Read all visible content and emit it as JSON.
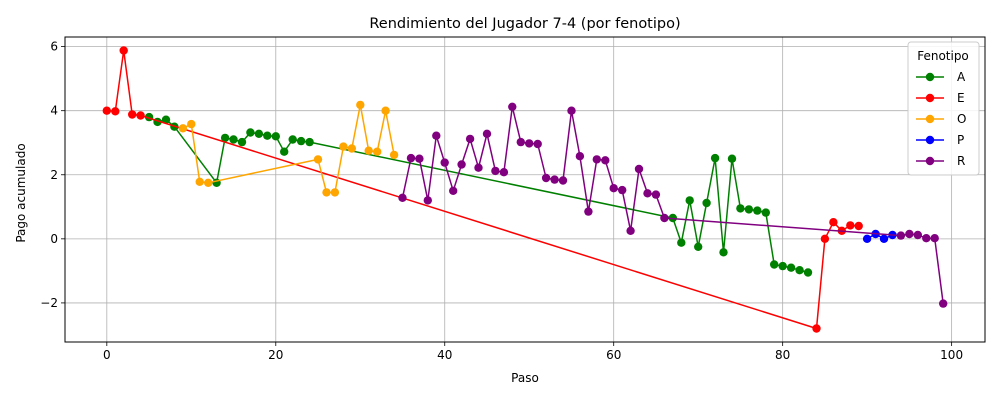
{
  "chart_data": {
    "type": "line",
    "title": "Rendimiento del Jugador 7-4 (por fenotipo)",
    "xlabel": "Paso",
    "ylabel": "Pago acumulado",
    "xlim": [
      -4.95,
      103.95
    ],
    "ylim": [
      -3.22,
      6.3
    ],
    "xticks": [
      0,
      20,
      40,
      60,
      80,
      100
    ],
    "yticks": [
      -2,
      0,
      2,
      4,
      6
    ],
    "grid": true,
    "legend": {
      "title": "Fenotipo",
      "placement": "top-right"
    },
    "series": [
      {
        "name": "A",
        "color": "#008000",
        "points": [
          [
            5,
            3.8
          ],
          [
            6,
            3.65
          ],
          [
            7,
            3.72
          ],
          [
            8,
            3.5
          ],
          [
            13,
            1.75
          ],
          [
            14,
            3.15
          ],
          [
            15,
            3.1
          ],
          [
            16,
            3.02
          ],
          [
            17,
            3.32
          ],
          [
            18,
            3.28
          ],
          [
            19,
            3.22
          ],
          [
            20,
            3.2
          ],
          [
            21,
            2.72
          ],
          [
            22,
            3.1
          ],
          [
            23,
            3.05
          ],
          [
            24,
            3.02
          ],
          [
            67,
            0.65
          ],
          [
            68,
            -0.12
          ],
          [
            69,
            1.2
          ],
          [
            70,
            -0.25
          ],
          [
            71,
            1.12
          ],
          [
            72,
            2.52
          ],
          [
            73,
            -0.42
          ],
          [
            74,
            2.5
          ],
          [
            75,
            0.95
          ],
          [
            76,
            0.92
          ],
          [
            77,
            0.88
          ],
          [
            78,
            0.82
          ],
          [
            79,
            -0.8
          ],
          [
            80,
            -0.85
          ],
          [
            81,
            -0.9
          ],
          [
            82,
            -0.98
          ],
          [
            83,
            -1.05
          ]
        ]
      },
      {
        "name": "E",
        "color": "#ff0000",
        "points": [
          [
            0,
            4.0
          ],
          [
            1,
            3.98
          ],
          [
            2,
            5.88
          ],
          [
            3,
            3.88
          ],
          [
            4,
            3.85
          ],
          [
            84,
            -2.8
          ],
          [
            85,
            0.0
          ],
          [
            86,
            0.52
          ],
          [
            87,
            0.25
          ],
          [
            88,
            0.42
          ],
          [
            89,
            0.4
          ]
        ]
      },
      {
        "name": "O",
        "color": "#ffa500",
        "points": [
          [
            9,
            3.45
          ],
          [
            10,
            3.58
          ],
          [
            11,
            1.78
          ],
          [
            12,
            1.75
          ],
          [
            25,
            2.48
          ],
          [
            26,
            1.45
          ],
          [
            27,
            1.45
          ],
          [
            28,
            2.88
          ],
          [
            29,
            2.82
          ],
          [
            30,
            4.18
          ],
          [
            31,
            2.75
          ],
          [
            32,
            2.72
          ],
          [
            33,
            4.0
          ],
          [
            34,
            2.62
          ]
        ]
      },
      {
        "name": "P",
        "color": "#0000ff",
        "points": [
          [
            90,
            0.0
          ],
          [
            91,
            0.15
          ],
          [
            92,
            0.0
          ],
          [
            93,
            0.12
          ]
        ]
      },
      {
        "name": "R",
        "color": "#800080",
        "points": [
          [
            35,
            1.28
          ],
          [
            36,
            2.52
          ],
          [
            37,
            2.5
          ],
          [
            38,
            1.2
          ],
          [
            39,
            3.22
          ],
          [
            40,
            2.38
          ],
          [
            41,
            1.5
          ],
          [
            42,
            2.32
          ],
          [
            43,
            3.12
          ],
          [
            44,
            2.22
          ],
          [
            45,
            3.28
          ],
          [
            46,
            2.12
          ],
          [
            47,
            2.08
          ],
          [
            48,
            4.12
          ],
          [
            49,
            3.02
          ],
          [
            50,
            2.98
          ],
          [
            51,
            2.96
          ],
          [
            52,
            1.9
          ],
          [
            53,
            1.85
          ],
          [
            54,
            1.82
          ],
          [
            55,
            4.0
          ],
          [
            56,
            2.58
          ],
          [
            57,
            0.85
          ],
          [
            58,
            2.48
          ],
          [
            59,
            2.45
          ],
          [
            60,
            1.58
          ],
          [
            61,
            1.52
          ],
          [
            62,
            0.25
          ],
          [
            63,
            2.18
          ],
          [
            64,
            1.42
          ],
          [
            65,
            1.38
          ],
          [
            66,
            0.65
          ],
          [
            94,
            0.1
          ],
          [
            95,
            0.15
          ],
          [
            96,
            0.12
          ],
          [
            97,
            0.02
          ],
          [
            98,
            0.02
          ],
          [
            99,
            -2.02
          ]
        ]
      }
    ]
  }
}
